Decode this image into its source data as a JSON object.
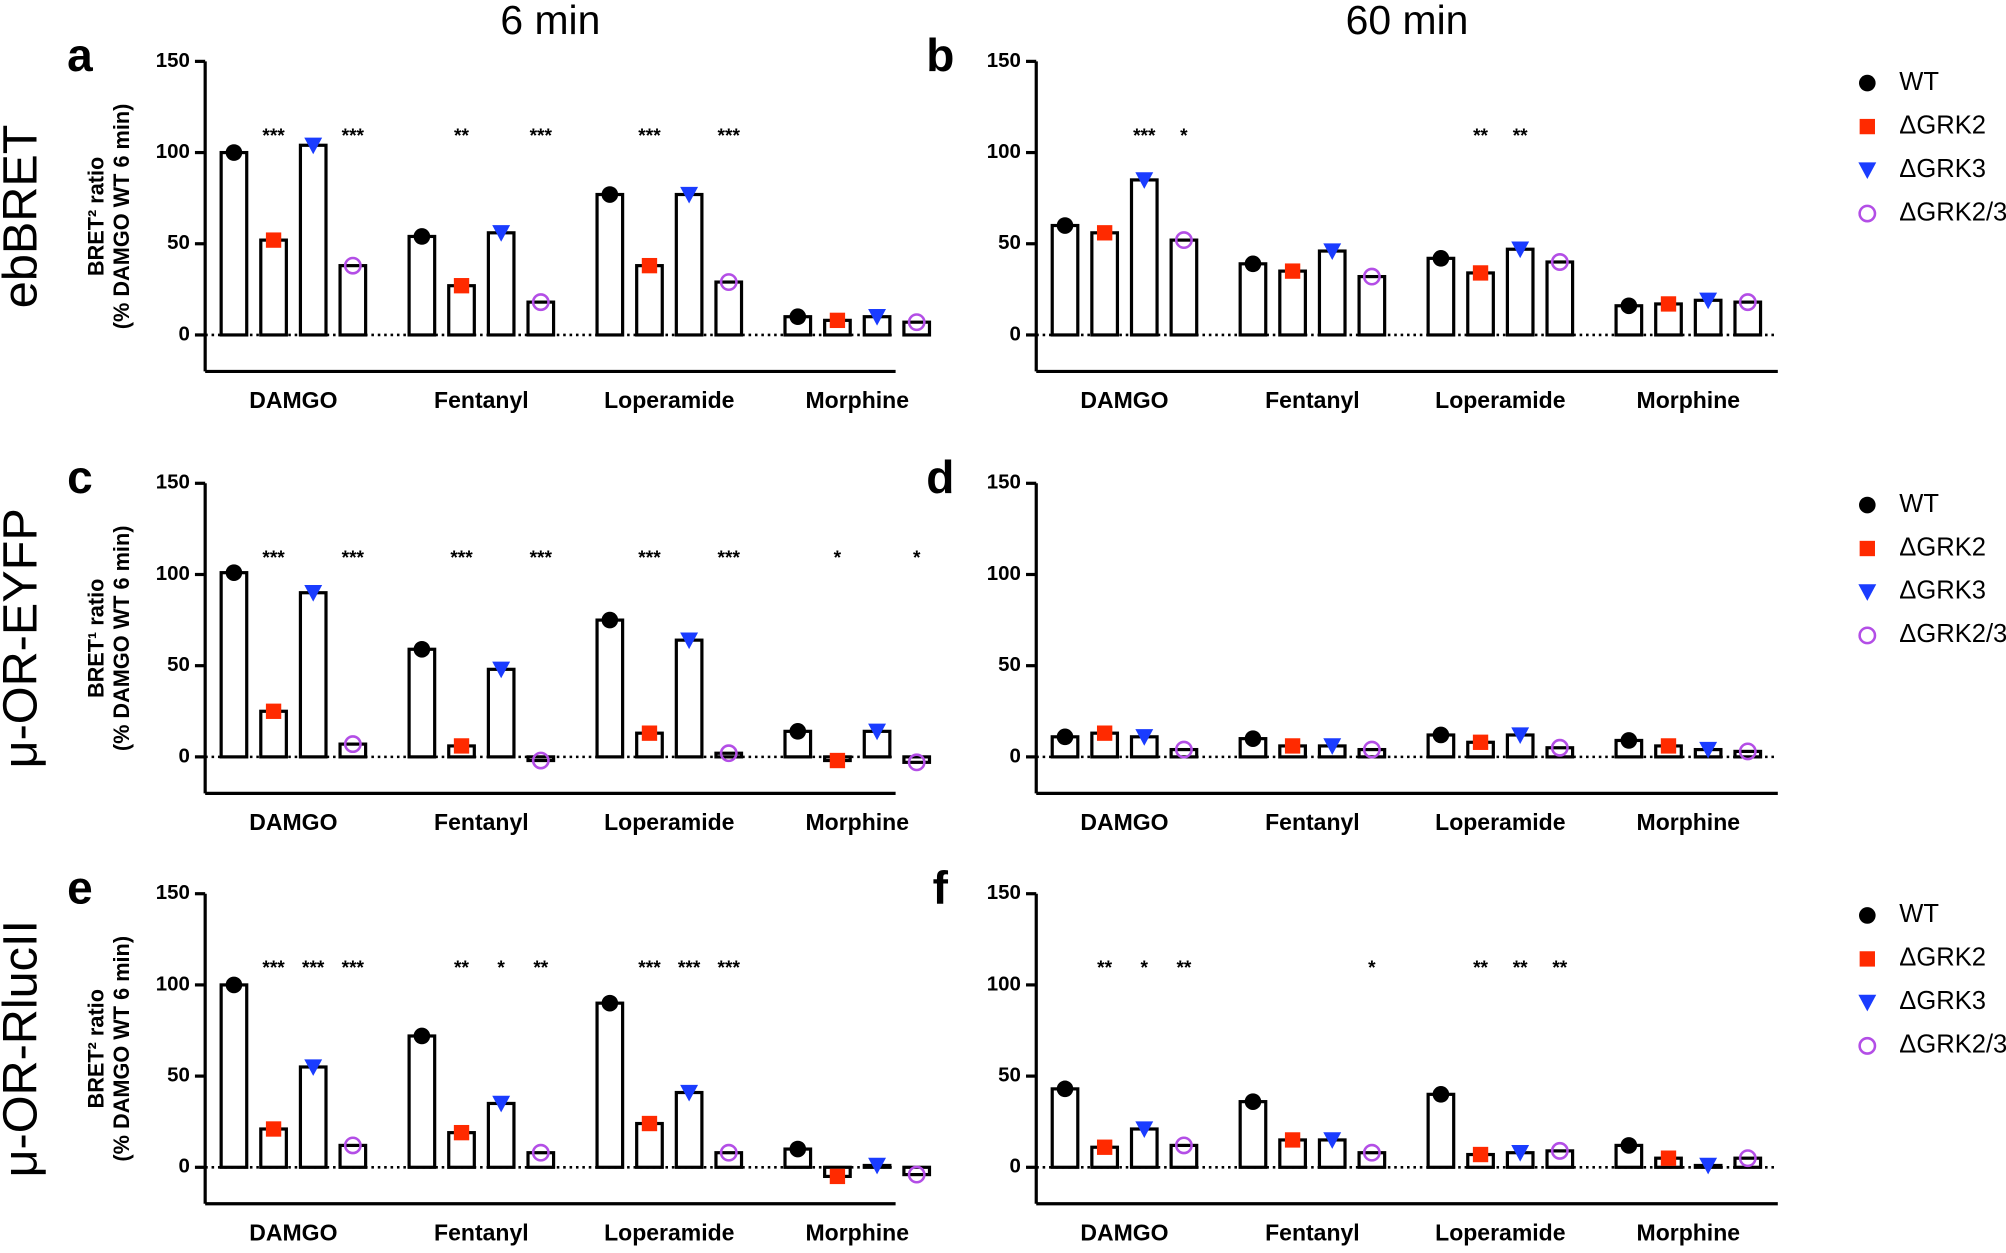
{
  "chart_data": [
    {
      "type": "bar",
      "panel": "a",
      "title": "6 min",
      "row_label": "ebBRET",
      "ylabel": [
        "BRET² ratio",
        "(% DAMGO WT 6 min)"
      ],
      "categories": [
        "DAMGO",
        "Fentanyl",
        "Loperamide",
        "Morphine"
      ],
      "ylim": [
        -20,
        150
      ],
      "yticks": [
        0,
        50,
        100,
        150
      ],
      "series": [
        {
          "name": "WT",
          "color": "#000000",
          "marker": "circle",
          "values": [
            100,
            54,
            77,
            10
          ],
          "annotations": [
            null,
            null,
            null,
            null
          ]
        },
        {
          "name": "ΔGRK2",
          "color": "#ff2a00",
          "marker": "square",
          "values": [
            52,
            27,
            38,
            8
          ],
          "annotations": [
            "***",
            "**",
            "***",
            null
          ]
        },
        {
          "name": "ΔGRK3",
          "color": "#1a3cff",
          "marker": "triangle-down",
          "values": [
            104,
            56,
            77,
            10
          ],
          "annotations": [
            null,
            null,
            null,
            null
          ]
        },
        {
          "name": "ΔGRK2/3",
          "color": "#b34ee6",
          "marker": "open-circle",
          "values": [
            38,
            18,
            29,
            7
          ],
          "annotations": [
            "***",
            "***",
            "***",
            null
          ]
        }
      ]
    },
    {
      "type": "bar",
      "panel": "b",
      "title": "60 min",
      "legend": true,
      "categories": [
        "DAMGO",
        "Fentanyl",
        "Loperamide",
        "Morphine"
      ],
      "ylim": [
        -20,
        150
      ],
      "yticks": [
        0,
        50,
        100,
        150
      ],
      "series": [
        {
          "name": "WT",
          "color": "#000000",
          "marker": "circle",
          "values": [
            60,
            39,
            42,
            16
          ],
          "annotations": [
            null,
            null,
            null,
            null
          ]
        },
        {
          "name": "ΔGRK2",
          "color": "#ff2a00",
          "marker": "square",
          "values": [
            56,
            35,
            34,
            17
          ],
          "annotations": [
            null,
            null,
            "**",
            null
          ]
        },
        {
          "name": "ΔGRK3",
          "color": "#1a3cff",
          "marker": "triangle-down",
          "values": [
            85,
            46,
            47,
            19
          ],
          "annotations": [
            "***",
            null,
            "**",
            null
          ]
        },
        {
          "name": "ΔGRK2/3",
          "color": "#b34ee6",
          "marker": "open-circle",
          "values": [
            52,
            32,
            40,
            18
          ],
          "annotations": [
            "*",
            null,
            null,
            null
          ]
        }
      ]
    },
    {
      "type": "bar",
      "panel": "c",
      "row_label": "μ-OR-EYFP",
      "ylabel": [
        "BRET¹ ratio",
        "(% DAMGO WT 6 min)"
      ],
      "categories": [
        "DAMGO",
        "Fentanyl",
        "Loperamide",
        "Morphine"
      ],
      "ylim": [
        -20,
        150
      ],
      "yticks": [
        0,
        50,
        100,
        150
      ],
      "series": [
        {
          "name": "WT",
          "color": "#000000",
          "marker": "circle",
          "values": [
            101,
            59,
            75,
            14
          ],
          "annotations": [
            null,
            null,
            null,
            null
          ]
        },
        {
          "name": "ΔGRK2",
          "color": "#ff2a00",
          "marker": "square",
          "values": [
            25,
            6,
            13,
            -2
          ],
          "annotations": [
            "***",
            "***",
            "***",
            "*"
          ]
        },
        {
          "name": "ΔGRK3",
          "color": "#1a3cff",
          "marker": "triangle-down",
          "values": [
            90,
            48,
            64,
            14
          ],
          "annotations": [
            null,
            null,
            null,
            null
          ]
        },
        {
          "name": "ΔGRK2/3",
          "color": "#b34ee6",
          "marker": "open-circle",
          "values": [
            7,
            -2,
            2,
            -3
          ],
          "annotations": [
            "***",
            "***",
            "***",
            "*"
          ]
        }
      ]
    },
    {
      "type": "bar",
      "panel": "d",
      "legend": true,
      "categories": [
        "DAMGO",
        "Fentanyl",
        "Loperamide",
        "Morphine"
      ],
      "ylim": [
        -20,
        150
      ],
      "yticks": [
        0,
        50,
        100,
        150
      ],
      "series": [
        {
          "name": "WT",
          "color": "#000000",
          "marker": "circle",
          "values": [
            11,
            10,
            12,
            9
          ],
          "annotations": [
            null,
            null,
            null,
            null
          ]
        },
        {
          "name": "ΔGRK2",
          "color": "#ff2a00",
          "marker": "square",
          "values": [
            13,
            6,
            8,
            6
          ],
          "annotations": [
            null,
            null,
            null,
            null
          ]
        },
        {
          "name": "ΔGRK3",
          "color": "#1a3cff",
          "marker": "triangle-down",
          "values": [
            11,
            6,
            12,
            4
          ],
          "annotations": [
            null,
            null,
            null,
            null
          ]
        },
        {
          "name": "ΔGRK2/3",
          "color": "#b34ee6",
          "marker": "open-circle",
          "values": [
            4,
            4,
            5,
            3
          ],
          "annotations": [
            null,
            null,
            null,
            null
          ]
        }
      ]
    },
    {
      "type": "bar",
      "panel": "e",
      "row_label": "μ-OR-RlucII",
      "ylabel": [
        "BRET² ratio",
        "(% DAMGO WT 6 min)"
      ],
      "categories": [
        "DAMGO",
        "Fentanyl",
        "Loperamide",
        "Morphine"
      ],
      "ylim": [
        -20,
        150
      ],
      "yticks": [
        0,
        50,
        100,
        150
      ],
      "series": [
        {
          "name": "WT",
          "color": "#000000",
          "marker": "circle",
          "values": [
            100,
            72,
            90,
            10
          ],
          "annotations": [
            null,
            null,
            null,
            null
          ]
        },
        {
          "name": "ΔGRK2",
          "color": "#ff2a00",
          "marker": "square",
          "values": [
            21,
            19,
            24,
            -5
          ],
          "annotations": [
            "***",
            "**",
            "***",
            null
          ]
        },
        {
          "name": "ΔGRK3",
          "color": "#1a3cff",
          "marker": "triangle-down",
          "values": [
            55,
            35,
            41,
            1
          ],
          "annotations": [
            "***",
            "*",
            "***",
            null
          ]
        },
        {
          "name": "ΔGRK2/3",
          "color": "#b34ee6",
          "marker": "open-circle",
          "values": [
            12,
            8,
            8,
            -4
          ],
          "annotations": [
            "***",
            "**",
            "***",
            null
          ]
        }
      ]
    },
    {
      "type": "bar",
      "panel": "f",
      "legend": true,
      "categories": [
        "DAMGO",
        "Fentanyl",
        "Loperamide",
        "Morphine"
      ],
      "ylim": [
        -20,
        150
      ],
      "yticks": [
        0,
        50,
        100,
        150
      ],
      "series": [
        {
          "name": "WT",
          "color": "#000000",
          "marker": "circle",
          "values": [
            43,
            36,
            40,
            12
          ],
          "annotations": [
            null,
            null,
            null,
            null
          ]
        },
        {
          "name": "ΔGRK2",
          "color": "#ff2a00",
          "marker": "square",
          "values": [
            11,
            15,
            7,
            5
          ],
          "annotations": [
            "**",
            null,
            "**",
            null
          ]
        },
        {
          "name": "ΔGRK3",
          "color": "#1a3cff",
          "marker": "triangle-down",
          "values": [
            21,
            15,
            8,
            1
          ],
          "annotations": [
            "*",
            null,
            "**",
            null
          ]
        },
        {
          "name": "ΔGRK2/3",
          "color": "#b34ee6",
          "marker": "open-circle",
          "values": [
            12,
            8,
            9,
            5
          ],
          "annotations": [
            "**",
            "*",
            "**",
            null
          ]
        }
      ]
    }
  ]
}
